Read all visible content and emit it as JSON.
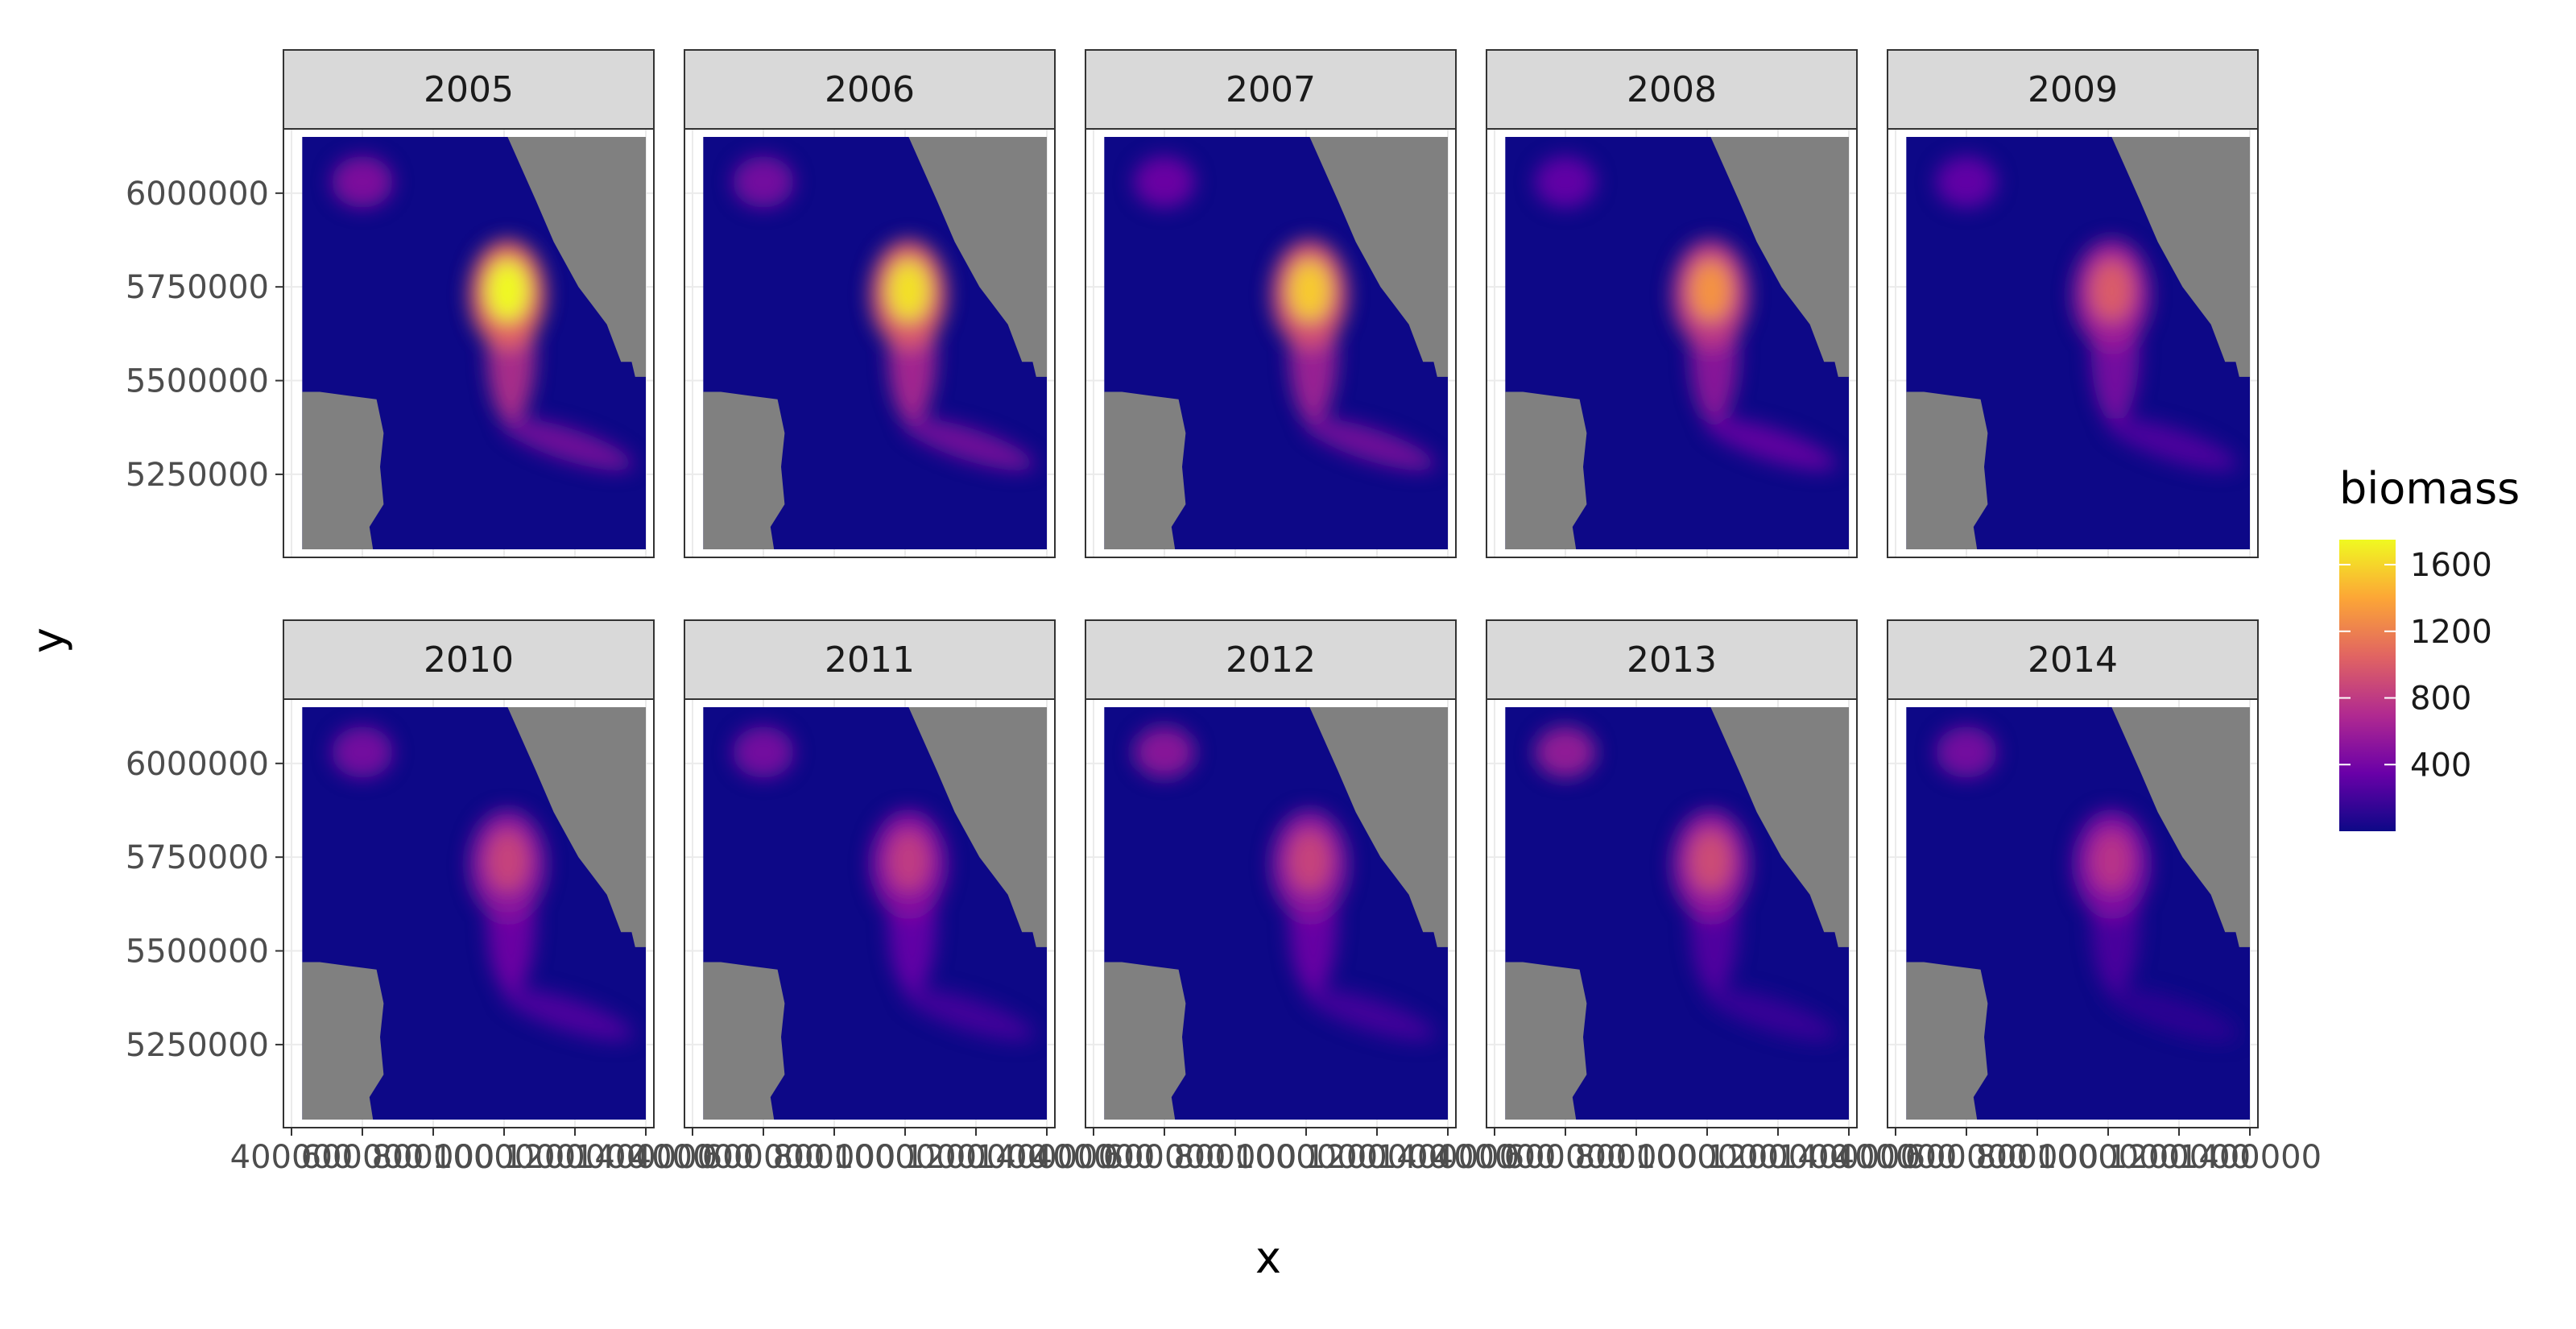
{
  "chart_data": {
    "type": "heatmap",
    "facets": [
      "2005",
      "2006",
      "2007",
      "2008",
      "2009",
      "2010",
      "2011",
      "2012",
      "2013",
      "2014"
    ],
    "xlabel": "x",
    "ylabel": "y",
    "x_ticks": [
      400000,
      600000,
      800000,
      1000000,
      1200000,
      1400000
    ],
    "x_tick_labels": [
      "400000",
      "600000",
      "800000",
      "1000000",
      "1200000",
      "1400000"
    ],
    "y_ticks": [
      5250000,
      5500000,
      5750000,
      6000000
    ],
    "y_tick_labels": [
      "5250000",
      "5500000",
      "5750000",
      "6000000"
    ],
    "xlim": [
      400000,
      1400000
    ],
    "ylim": [
      5050000,
      6150000
    ],
    "grid": true,
    "fill_variable": "biomass",
    "colorscale": "plasma",
    "colors": [
      "#0d0887",
      "#6a00a8",
      "#b12a90",
      "#e16462",
      "#fca636",
      "#f0f921"
    ],
    "mask_color": "#808080",
    "legend": {
      "title": "biomass",
      "position": "right",
      "range": [
        0,
        1750
      ],
      "breaks": [
        400,
        800,
        1200,
        1600
      ],
      "break_labels": [
        "400",
        "800",
        "1200",
        "1600"
      ]
    },
    "series": [
      {
        "name": "2005",
        "hotspot_peak": 1750,
        "north_peak": 500,
        "channel_peak": 750,
        "southeast_peak": 500
      },
      {
        "name": "2006",
        "hotspot_peak": 1650,
        "north_peak": 450,
        "channel_peak": 700,
        "southeast_peak": 500
      },
      {
        "name": "2007",
        "hotspot_peak": 1550,
        "north_peak": 400,
        "channel_peak": 650,
        "southeast_peak": 500
      },
      {
        "name": "2008",
        "hotspot_peak": 1300,
        "north_peak": 350,
        "channel_peak": 550,
        "southeast_peak": 400
      },
      {
        "name": "2009",
        "hotspot_peak": 1000,
        "north_peak": 350,
        "channel_peak": 450,
        "southeast_peak": 300
      },
      {
        "name": "2010",
        "hotspot_peak": 850,
        "north_peak": 450,
        "channel_peak": 400,
        "southeast_peak": 300
      },
      {
        "name": "2011",
        "hotspot_peak": 800,
        "north_peak": 450,
        "channel_peak": 350,
        "southeast_peak": 250
      },
      {
        "name": "2012",
        "hotspot_peak": 850,
        "north_peak": 550,
        "channel_peak": 380,
        "southeast_peak": 250
      },
      {
        "name": "2013",
        "hotspot_peak": 900,
        "north_peak": 600,
        "channel_peak": 280,
        "southeast_peak": 200
      },
      {
        "name": "2014",
        "hotspot_peak": 750,
        "north_peak": 450,
        "channel_peak": 250,
        "southeast_peak": 150
      }
    ]
  }
}
